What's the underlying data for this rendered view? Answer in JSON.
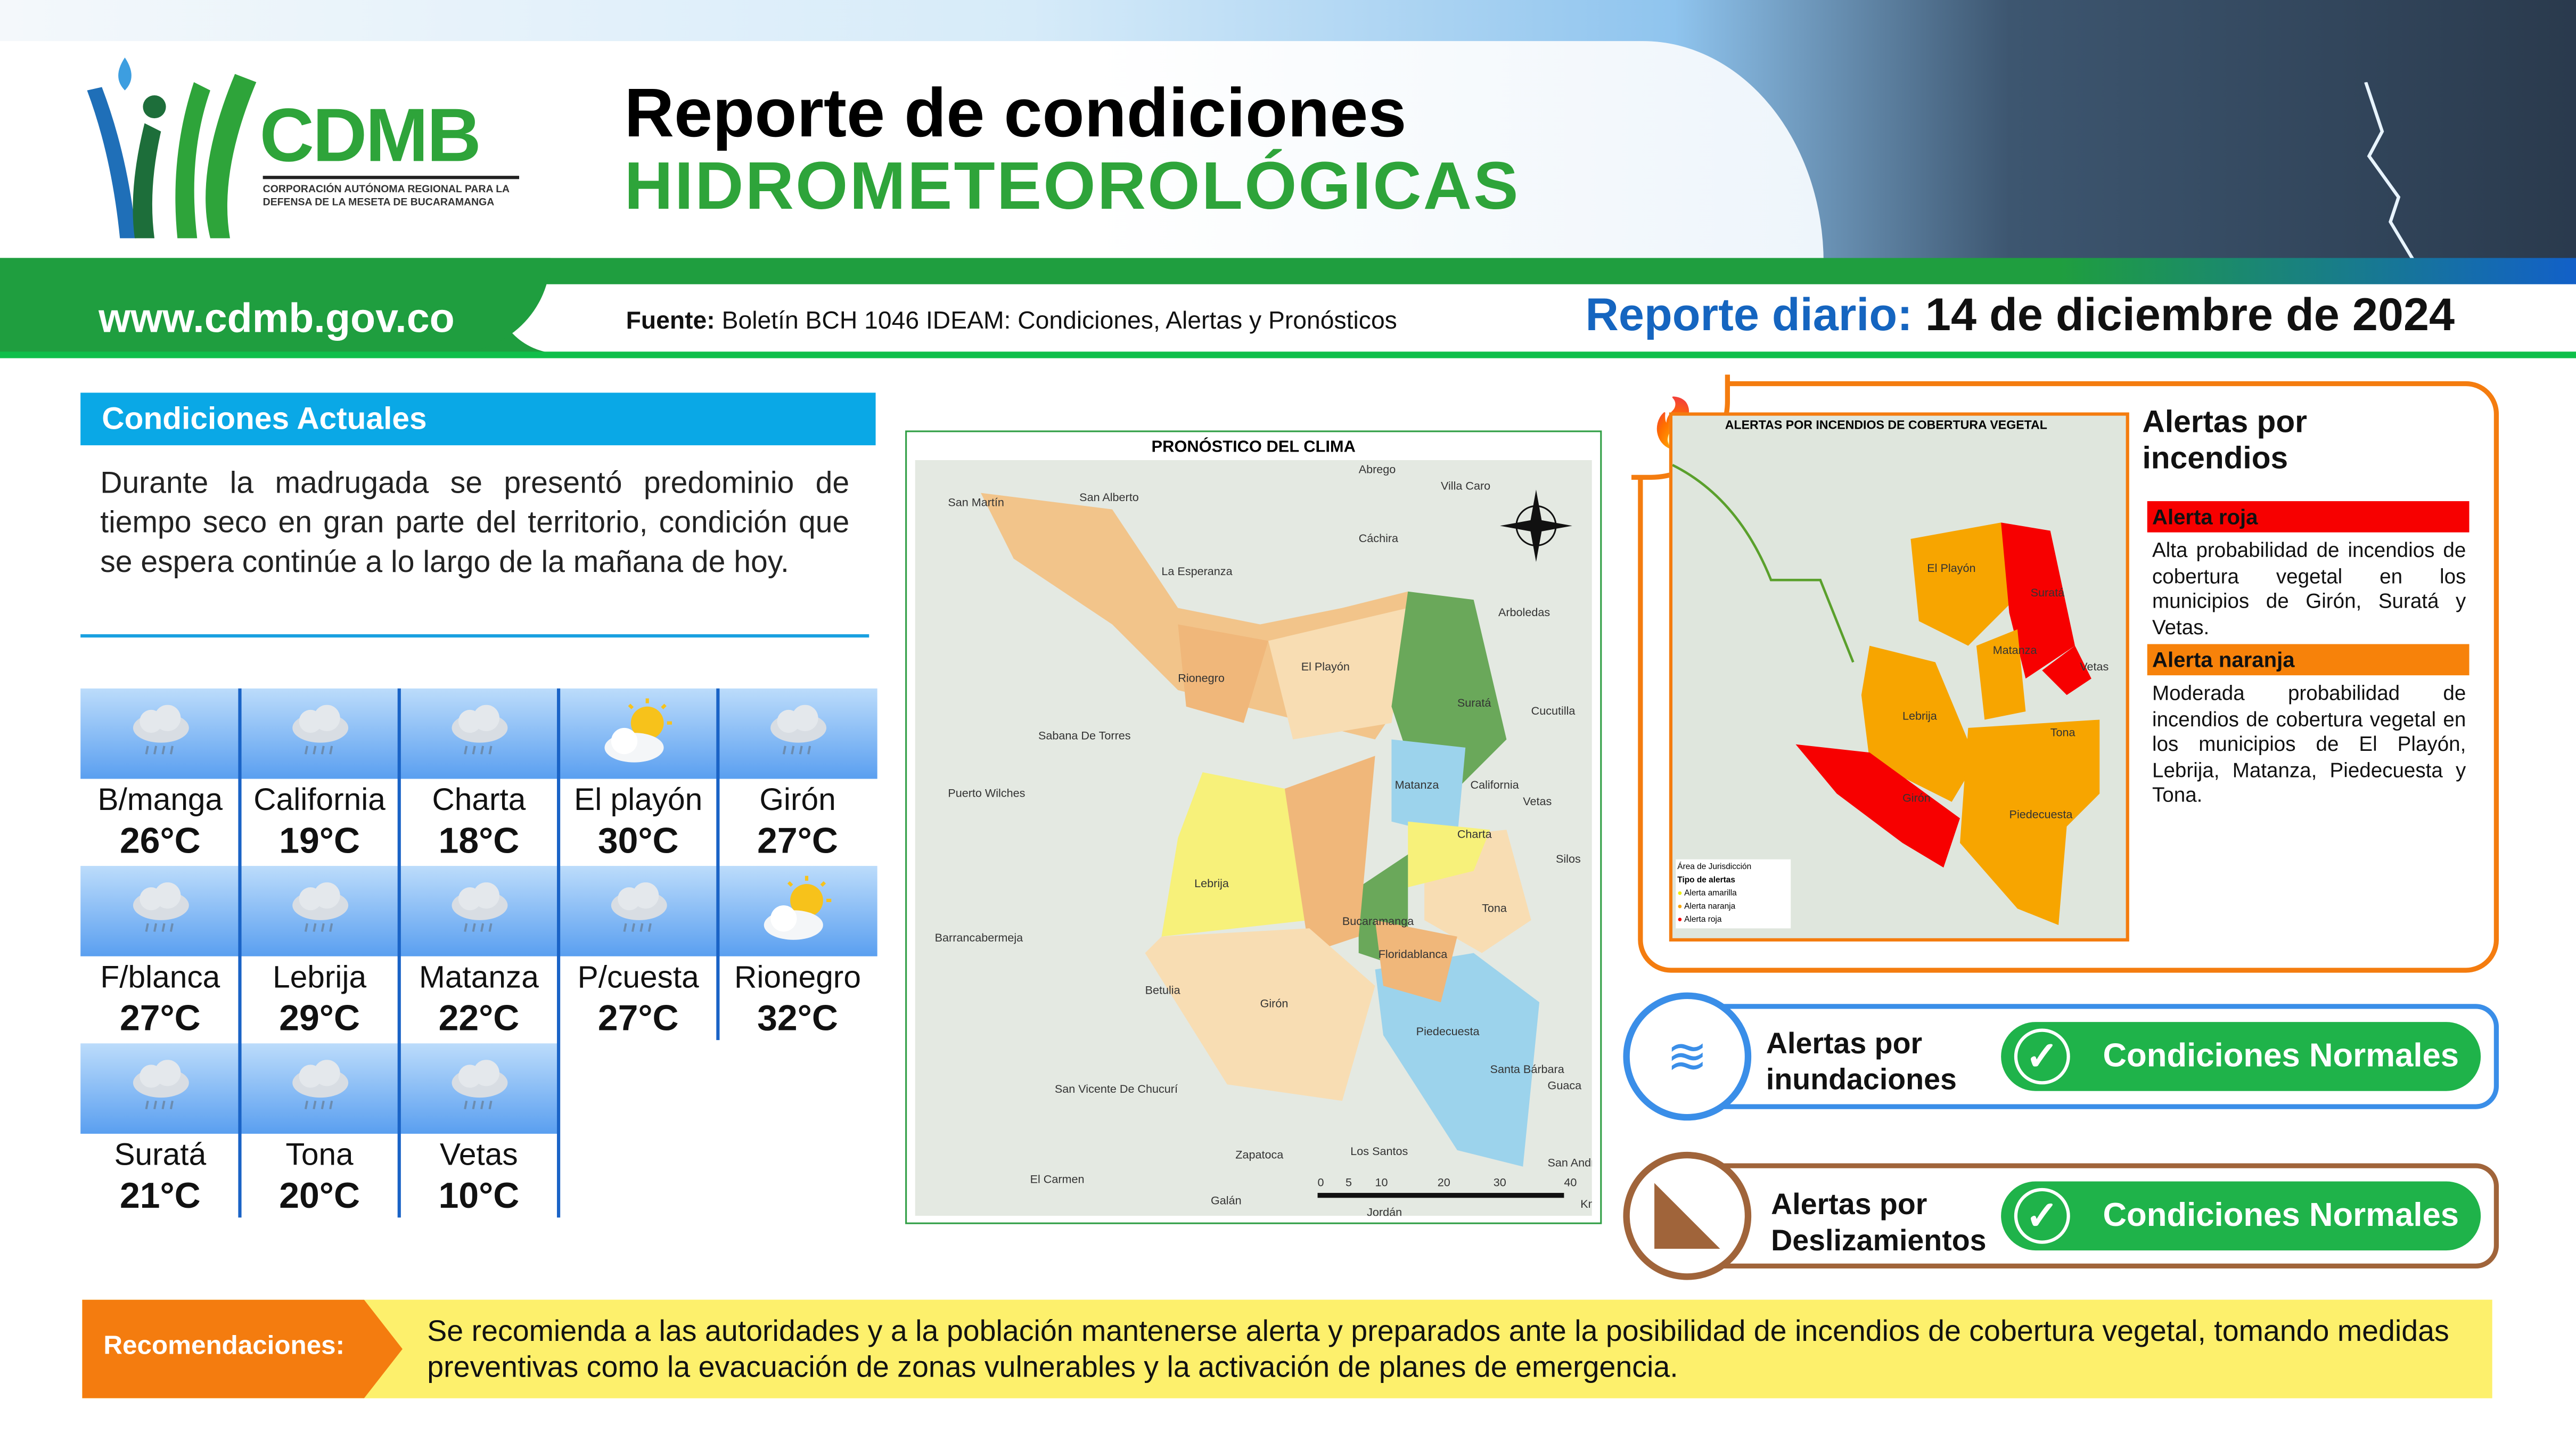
{
  "header": {
    "logo_text": "CDMB",
    "logo_subtitle": "CORPORACIÓN AUTÓNOMA REGIONAL PARA LA DEFENSA DE LA MESETA DE BUCARAMANGA",
    "title_line1": "Reporte de condiciones",
    "title_line2": "HIDROMETEOROLÓGICAS",
    "url": "www.cdmb.gov.co",
    "source_label": "Fuente:",
    "source_text": "Boletín BCH 1046 IDEAM: Condiciones, Alertas y Pronósticos",
    "report_label": "Reporte diario:",
    "report_date": "14 de diciembre de 2024"
  },
  "current": {
    "title": "Condiciones Actuales",
    "text": "Durante la madrugada se presentó predominio de tiempo seco en gran parte del territorio, condición que se espera continúe a lo largo de la mañana de hoy."
  },
  "weather": [
    {
      "name": "B/manga",
      "temp": "26°C",
      "icon": "rain-cloud"
    },
    {
      "name": "California",
      "temp": "19°C",
      "icon": "rain-cloud"
    },
    {
      "name": "Charta",
      "temp": "18°C",
      "icon": "rain-cloud"
    },
    {
      "name": "El playón",
      "temp": "30°C",
      "icon": "sun-cloud"
    },
    {
      "name": "Girón",
      "temp": "27°C",
      "icon": "rain-cloud"
    },
    {
      "name": "F/blanca",
      "temp": "27°C",
      "icon": "rain-cloud"
    },
    {
      "name": "Lebrija",
      "temp": "29°C",
      "icon": "rain-cloud"
    },
    {
      "name": "Matanza",
      "temp": "22°C",
      "icon": "rain-cloud"
    },
    {
      "name": "P/cuesta",
      "temp": "27°C",
      "icon": "rain-cloud"
    },
    {
      "name": "Rionegro",
      "temp": "32°C",
      "icon": "sun-cloud"
    },
    {
      "name": "Suratá",
      "temp": "21°C",
      "icon": "rain-cloud"
    },
    {
      "name": "Tona",
      "temp": "20°C",
      "icon": "rain-cloud"
    },
    {
      "name": "Vetas",
      "temp": "10°C",
      "icon": "rain-cloud"
    }
  ],
  "forecast_map": {
    "title": "PRONÓSTICO DEL CLIMA",
    "labels": [
      "San Martín",
      "San Alberto",
      "Abrego",
      "Villa Caro",
      "Cáchira",
      "La Esperanza",
      "Rionegro",
      "El Playón",
      "Arboledas",
      "Suratá",
      "Cucutilla",
      "Sabana De Torres",
      "Puerto Wilches",
      "Matanza",
      "California",
      "Vetas",
      "Charta",
      "Silos",
      "Lebrija",
      "Bucaramanga",
      "Tona",
      "Floridablanca",
      "Barrancabermeja",
      "Betulia",
      "Girón",
      "Piedecuesta",
      "Santa Bárbara",
      "Guaca",
      "San Vicente De Chucurí",
      "Zapatoca",
      "Los Santos",
      "El Carmen",
      "Galán",
      "San Andrés",
      "Jordán"
    ],
    "scale": [
      "0",
      "5",
      "10",
      "20",
      "30",
      "40",
      "Km"
    ]
  },
  "fire": {
    "map_title": "ALERTAS POR INCENDIOS DE COBERTURA VEGETAL",
    "title": "Alertas por incendios",
    "red_label": "Alerta roja",
    "red_text": "Alta probabilidad de incendios de cobertura vegetal en los municipios de Girón, Suratá y Vetas.",
    "orange_label": "Alerta naranja",
    "orange_text": "Moderada probabilidad de incendios de cobertura vegetal en los municipios de El Playón, Lebrija, Matanza, Piedecuesta y Tona.",
    "legend": {
      "jurisdiction": "Área de Jurisdicción",
      "type": "Tipo de alertas",
      "yellow": "Alerta amarilla",
      "orange": "Alerta naranja",
      "red": "Alerta roja"
    },
    "colors": {
      "red": "#f70000",
      "orange": "#f7a500",
      "border": "#f47c0f"
    }
  },
  "floods": {
    "title": "Alertas por inundaciones",
    "status": "Condiciones Normales",
    "color": "#3a8ee8"
  },
  "landslides": {
    "title": "Alertas por Deslizamientos",
    "status": "Condiciones Normales",
    "color": "#a0643a"
  },
  "recommendations": {
    "label": "Recomendaciones:",
    "text": "Se recomienda a las autoridades y a la población mantenerse alerta y preparados ante la posibilidad de incendios de cobertura vegetal, tomando medidas preventivas como la evacuación de zonas vulnerables y la activación de planes de emergencia."
  },
  "colors": {
    "green": "#1f9e3f",
    "blue": "#1565c0",
    "cyan": "#0aa8e6",
    "orange": "#f47c0f",
    "yellow": "#fdf06c"
  }
}
